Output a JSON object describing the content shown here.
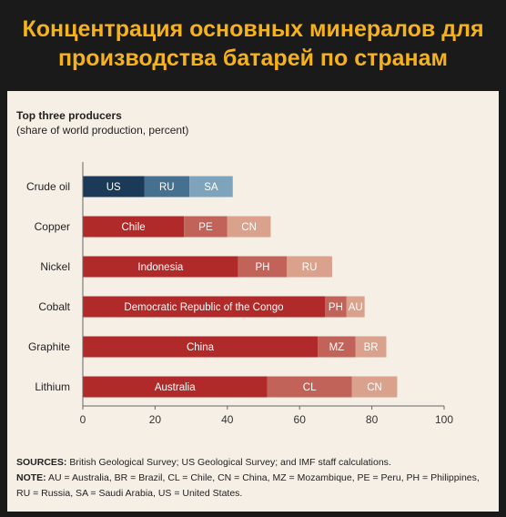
{
  "header": {
    "title_line1": "Концентрация основных минералов для",
    "title_line2": "производства батарей по странам"
  },
  "chart_data": {
    "type": "bar",
    "orientation": "horizontal",
    "stacked": true,
    "title": "Top three producers",
    "subtitle": "(share of world production, percent)",
    "categories": [
      "Crude oil",
      "Copper",
      "Nickel",
      "Cobalt",
      "Graphite",
      "Lithium"
    ],
    "bars": [
      {
        "category": "Crude oil",
        "segments": [
          {
            "label": "US",
            "value": 17,
            "rank": 1
          },
          {
            "label": "RU",
            "value": 12.5,
            "rank": 2
          },
          {
            "label": "SA",
            "value": 12,
            "rank": 3
          }
        ]
      },
      {
        "category": "Copper",
        "segments": [
          {
            "label": "Chile",
            "value": 28,
            "rank": 1
          },
          {
            "label": "PE",
            "value": 12,
            "rank": 2
          },
          {
            "label": "CN",
            "value": 12,
            "rank": 3
          }
        ]
      },
      {
        "category": "Nickel",
        "segments": [
          {
            "label": "Indonesia",
            "value": 43,
            "rank": 1
          },
          {
            "label": "PH",
            "value": 13.5,
            "rank": 2
          },
          {
            "label": "RU",
            "value": 12.5,
            "rank": 3
          }
        ]
      },
      {
        "category": "Cobalt",
        "segments": [
          {
            "label": "Democratic Republic of the Congo",
            "value": 67,
            "rank": 1
          },
          {
            "label": "PH",
            "value": 6,
            "rank": 2
          },
          {
            "label": "AU",
            "value": 5,
            "rank": 3
          }
        ]
      },
      {
        "category": "Graphite",
        "segments": [
          {
            "label": "China",
            "value": 65,
            "rank": 1
          },
          {
            "label": "MZ",
            "value": 10.5,
            "rank": 2
          },
          {
            "label": "BR",
            "value": 8.5,
            "rank": 3
          }
        ]
      },
      {
        "category": "Lithium",
        "segments": [
          {
            "label": "Australia",
            "value": 51,
            "rank": 1
          },
          {
            "label": "CL",
            "value": 23.5,
            "rank": 2
          },
          {
            "label": "CN",
            "value": 12.5,
            "rank": 3
          }
        ]
      }
    ],
    "xlim": [
      0,
      100
    ],
    "xticks": [
      0,
      20,
      40,
      60,
      80,
      100
    ],
    "grid": false,
    "colors": {
      "crude_oil": [
        "#1b3a57",
        "#46708f",
        "#7ea3bd"
      ],
      "minerals": [
        "#b02a2a",
        "#c2635a",
        "#daa18c"
      ]
    }
  },
  "notes": {
    "sources_label": "SOURCES:",
    "sources_text": "British Geological Survey; US Geological Survey; and IMF staff calculations.",
    "note_label": "NOTE:",
    "note_text": "AU = Australia, BR = Brazil, CL = Chile, CN = China, MZ = Mozambique, PE = Peru, PH = Philippines, RU = Russia, SA = Saudi Arabia, US = United States."
  }
}
